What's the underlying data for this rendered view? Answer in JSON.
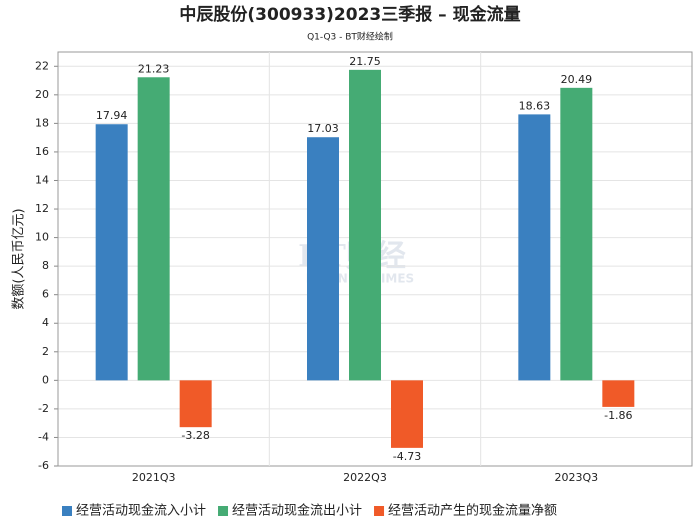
{
  "chart_data": {
    "type": "bar",
    "title": "中辰股份(300933)2023三季报 – 现金流量",
    "subtitle": "Q1-Q3 - BT财经绘制",
    "y_label": "数额(人民币亿元)",
    "watermark": "BT财经",
    "watermark_sub": "BUSINESSTIMES",
    "categories": [
      "2021Q3",
      "2022Q3",
      "2023Q3"
    ],
    "series": [
      {
        "name": "经营活动现金流入小计",
        "color": "#3a80c0",
        "values": [
          17.94,
          17.03,
          18.63
        ]
      },
      {
        "name": "经营活动现金流出小计",
        "color": "#45ab74",
        "values": [
          21.23,
          21.75,
          20.49
        ]
      },
      {
        "name": "经营活动产生的现金流量净额",
        "color": "#f05a28",
        "values": [
          -3.28,
          -4.73,
          -1.86
        ]
      }
    ],
    "ylim": [
      -6,
      23
    ],
    "yticks": [
      -6,
      -4,
      -2,
      0,
      2,
      4,
      6,
      8,
      10,
      12,
      14,
      16,
      18,
      20,
      22
    ],
    "grid": true,
    "legend": "bottom"
  }
}
